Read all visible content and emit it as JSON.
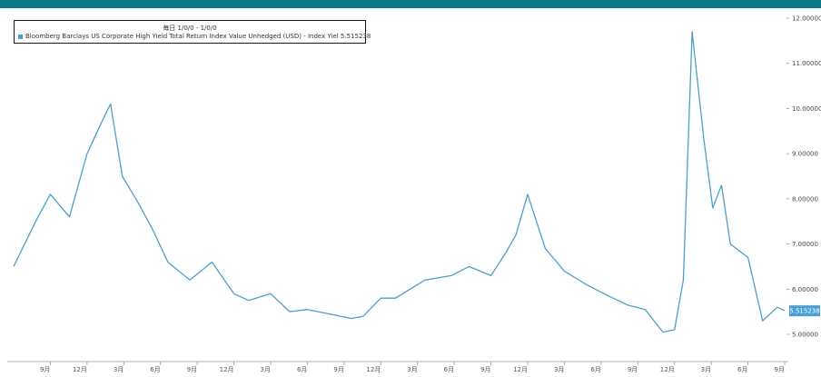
{
  "chart_data": {
    "type": "line",
    "legend": {
      "date_range": "毎日 1/0/0 - 1/0/0",
      "series_label": "Bloomberg Barclays US Corporate High Yield Total Return Index Value Unhedged (USD) - Index Yiel 5.515238"
    },
    "last_value_label": "5.515238",
    "ylim": [
      5.0,
      12.0
    ],
    "y_ticks": [
      "5.00000",
      "6.00000",
      "7.00000",
      "8.00000",
      "9.00000",
      "10.00000",
      "11.00000",
      "12.00000"
    ],
    "y_tick_values": [
      5,
      6,
      7,
      8,
      9,
      10,
      11,
      12
    ],
    "x_ticks": [
      "9月",
      "12月",
      "3月",
      "6月",
      "9月",
      "12月",
      "3月",
      "6月",
      "9月",
      "12月",
      "3月",
      "6月",
      "9月",
      "12月",
      "3月",
      "6月",
      "9月",
      "12月",
      "3月",
      "6月",
      "9月"
    ],
    "x_tick_positions": [
      0.25,
      0.5,
      0.75,
      1.0,
      1.25,
      1.5,
      1.75,
      2.0,
      2.25,
      2.5,
      2.75,
      3.0,
      3.25,
      3.5,
      3.75,
      4.0,
      4.25,
      4.5,
      4.75,
      5.0,
      5.25
    ],
    "xlim": [
      0.0,
      5.25
    ],
    "series": [
      {
        "color": "#4a9fd4",
        "x": [
          0.0,
          0.15,
          0.25,
          0.38,
          0.5,
          0.6,
          0.66,
          0.74,
          0.85,
          0.95,
          1.05,
          1.2,
          1.35,
          1.5,
          1.6,
          1.75,
          1.88,
          2.0,
          2.15,
          2.3,
          2.38,
          2.5,
          2.6,
          2.8,
          2.98,
          3.1,
          3.25,
          3.35,
          3.42,
          3.5,
          3.62,
          3.75,
          3.9,
          4.05,
          4.18,
          4.3,
          4.42,
          4.5,
          4.56,
          4.62,
          4.7,
          4.76,
          4.82,
          4.88,
          5.0,
          5.1,
          5.2,
          5.25
        ],
        "values": [
          6.5,
          7.5,
          8.1,
          7.6,
          9.0,
          9.7,
          10.1,
          8.5,
          7.9,
          7.3,
          6.6,
          6.2,
          6.6,
          5.9,
          5.75,
          5.9,
          5.5,
          5.55,
          5.45,
          5.35,
          5.4,
          5.8,
          5.8,
          6.2,
          6.3,
          6.5,
          6.3,
          6.8,
          7.2,
          8.1,
          6.9,
          6.4,
          6.1,
          5.85,
          5.65,
          5.55,
          5.05,
          5.1,
          6.2,
          11.7,
          9.3,
          7.8,
          8.3,
          7.0,
          6.7,
          5.3,
          5.6,
          5.52
        ]
      }
    ]
  }
}
